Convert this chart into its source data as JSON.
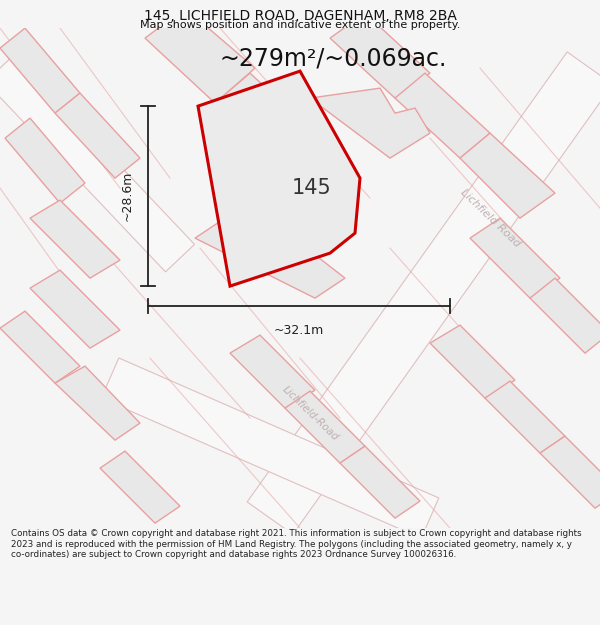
{
  "title": "145, LICHFIELD ROAD, DAGENHAM, RM8 2BA",
  "subtitle": "Map shows position and indicative extent of the property.",
  "area_label": "~279m²/~0.069ac.",
  "property_number": "145",
  "dim_width": "~32.1m",
  "dim_height": "~28.6m",
  "road_label_right": "Lichfield Road",
  "road_label_bottom": "Lichfield-Road",
  "footer": "Contains OS data © Crown copyright and database right 2021. This information is subject to Crown copyright and database rights 2023 and is reproduced with the permission of HM Land Registry. The polygons (including the associated geometry, namely x, y co-ordinates) are subject to Crown copyright and database rights 2023 Ordnance Survey 100026316.",
  "bg_color": "#f5f5f5",
  "map_bg": "#ffffff",
  "plot_face": "#e8e8e8",
  "plot_edge": "#e8a0a0",
  "highlight_color": "#cc0000",
  "dim_line_color": "#222222",
  "footer_color": "#222222",
  "title_color": "#111111",
  "road_text_color": "#c0b0b0",
  "number_color": "#333333"
}
